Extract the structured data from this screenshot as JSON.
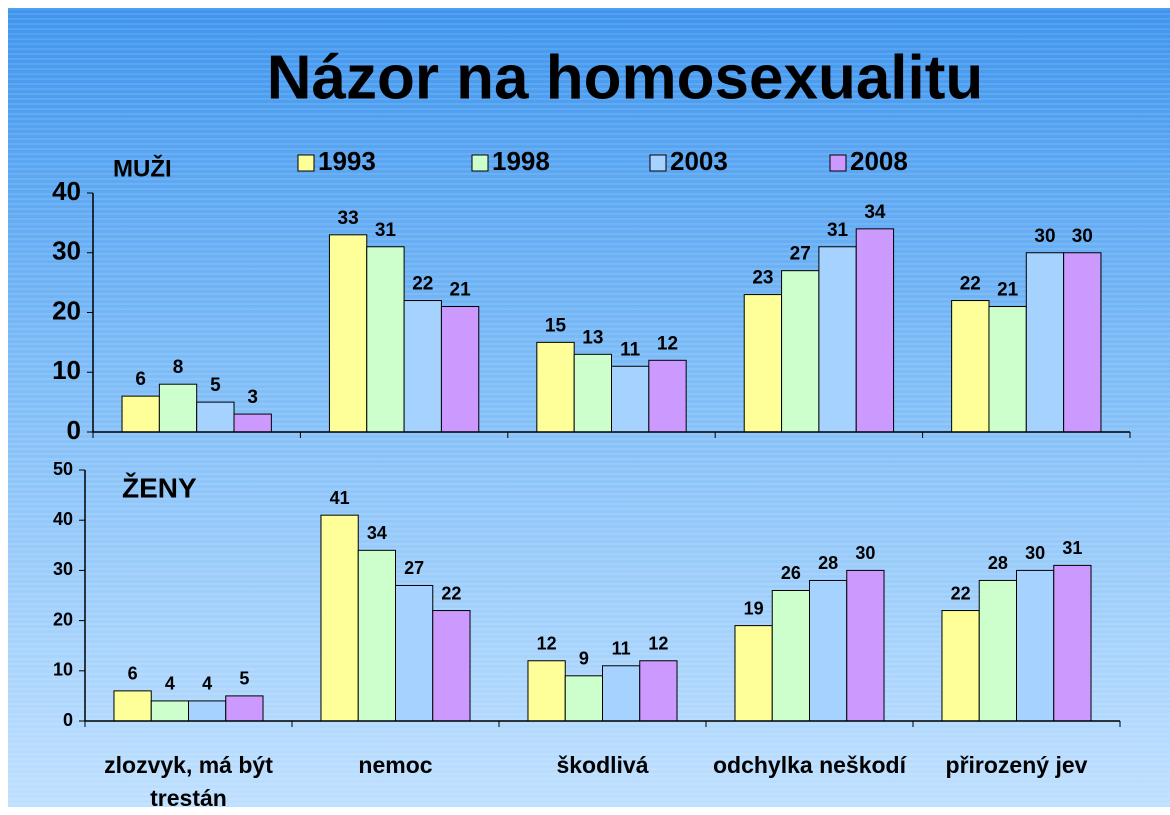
{
  "title": "Názor na homosexualitu",
  "chart_data": [
    {
      "type": "bar",
      "label": "MUŽI",
      "series": [
        {
          "name": "1993",
          "color": "#ffff99",
          "values": [
            6,
            33,
            15,
            23,
            22
          ]
        },
        {
          "name": "1998",
          "color": "#ccffcc",
          "values": [
            8,
            31,
            13,
            27,
            21
          ]
        },
        {
          "name": "2003",
          "color": "#a6d2ff",
          "values": [
            5,
            22,
            11,
            31,
            30
          ]
        },
        {
          "name": "2008",
          "color": "#cc99ff",
          "values": [
            3,
            21,
            12,
            34,
            30
          ]
        }
      ],
      "ylim": [
        0,
        40
      ],
      "yticks": [
        0,
        10,
        20,
        30,
        40
      ]
    },
    {
      "type": "bar",
      "label": "ŽENY",
      "categories": [
        "zlozvyk, má být trestán",
        "nemoc",
        "škodlivá",
        "odchylka neškodí",
        "přirozený jev"
      ],
      "series": [
        {
          "color": "#ffff99",
          "values": [
            6,
            41,
            12,
            19,
            22
          ]
        },
        {
          "color": "#ccffcc",
          "values": [
            4,
            34,
            9,
            26,
            28
          ]
        },
        {
          "color": "#a6d2ff",
          "values": [
            4,
            27,
            11,
            28,
            30
          ]
        },
        {
          "color": "#cc99ff",
          "values": [
            5,
            22,
            12,
            30,
            31
          ]
        }
      ],
      "ylim": [
        0,
        50
      ],
      "yticks": [
        0,
        10,
        20,
        30,
        40,
        50
      ]
    }
  ]
}
